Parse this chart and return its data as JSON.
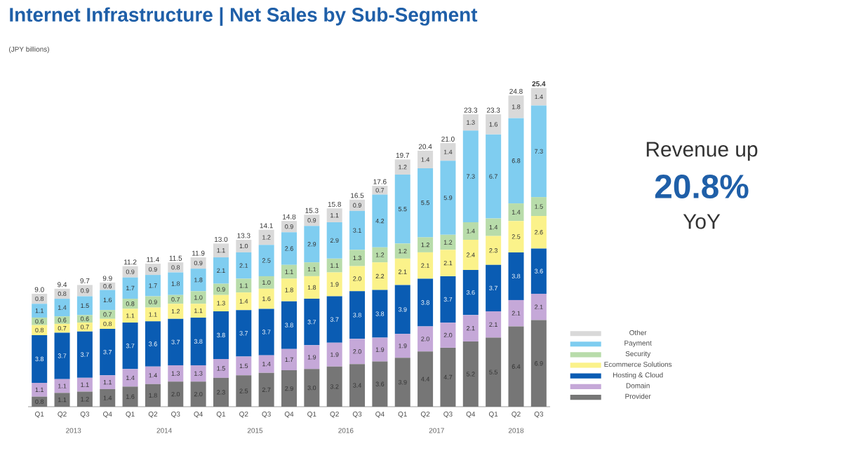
{
  "chart_data": {
    "type": "bar",
    "stacked": true,
    "title": "Internet Infrastructure | Net Sales by Sub-Segment",
    "ylabel": "(JPY billions)",
    "categories": [
      "Q1",
      "Q2",
      "Q3",
      "Q4",
      "Q1",
      "Q2",
      "Q3",
      "Q4",
      "Q1",
      "Q2",
      "Q3",
      "Q4",
      "Q1",
      "Q2",
      "Q3",
      "Q4",
      "Q1",
      "Q2",
      "Q3",
      "Q4",
      "Q1",
      "Q2",
      "Q3"
    ],
    "series": [
      {
        "name": "Provider",
        "color": "#767676",
        "values": [
          0.8,
          1.1,
          1.2,
          1.4,
          1.6,
          1.8,
          2.0,
          2.0,
          2.3,
          2.5,
          2.7,
          2.9,
          3.0,
          3.2,
          3.4,
          3.6,
          3.9,
          4.4,
          4.7,
          5.2,
          5.5,
          6.4,
          6.9
        ],
        "value_labels": [
          "0.8",
          "1.1",
          "1.2",
          "1.4",
          "1.6",
          "1.8",
          "2.0",
          "2.0",
          "2.3",
          "2.5",
          "2.7",
          "2.9",
          "3.0",
          "3.2",
          "3.4",
          "3.6",
          "3.9",
          "4.4",
          "4.7",
          "5.2",
          "5.5",
          "6.4",
          "6.9"
        ]
      },
      {
        "name": "Domain",
        "color": "#c5a8d8",
        "values": [
          1.1,
          1.1,
          1.1,
          1.1,
          1.4,
          1.4,
          1.3,
          1.3,
          1.5,
          1.5,
          1.4,
          1.7,
          1.9,
          1.9,
          2.0,
          1.9,
          1.9,
          2.0,
          2.0,
          2.1,
          2.1,
          2.1,
          2.1
        ],
        "value_labels": [
          "1.1",
          "1.1",
          "1.1",
          "1.1",
          "1.4",
          "1.4",
          "1.3",
          "1.3",
          "1.5",
          "1.5",
          "1.4",
          "1.7",
          "1.9",
          "1.9",
          "2.0",
          "1.9",
          "1.9",
          "2.0",
          "2.0",
          "2.1",
          "2.1",
          "2.1",
          "2.1"
        ]
      },
      {
        "name": "Hosting & Cloud",
        "color": "#0a5cb3",
        "values": [
          3.8,
          3.7,
          3.7,
          3.7,
          3.7,
          3.6,
          3.7,
          3.8,
          3.8,
          3.7,
          3.7,
          3.8,
          3.7,
          3.7,
          3.8,
          3.8,
          3.9,
          3.8,
          3.7,
          3.6,
          3.7,
          3.8,
          3.6
        ],
        "value_labels": [
          "3.8",
          "3.7",
          "3.7",
          "3.7",
          "3.7",
          "3.6",
          "3.7",
          "3.8",
          "3.8",
          "3.7",
          "3.7",
          "3.8",
          "3.7",
          "3.7",
          "3.8",
          "3.8",
          "3.9",
          "3.8",
          "3.7",
          "3.6",
          "3.7",
          "3.8",
          "3.6"
        ]
      },
      {
        "name": "Ecommerce Solutions",
        "color": "#fbf28a",
        "values": [
          0.8,
          0.7,
          0.7,
          0.8,
          1.1,
          1.1,
          1.2,
          1.1,
          1.3,
          1.4,
          1.6,
          1.8,
          1.8,
          1.9,
          2.0,
          2.2,
          2.1,
          2.1,
          2.1,
          2.4,
          2.3,
          2.5,
          2.6
        ],
        "value_labels": [
          "0.8",
          "0.7",
          "0.7",
          "0.8",
          "1.1",
          "1.1",
          "1.2",
          "1.1",
          "1.3",
          "1.4",
          "1.6",
          "1.8",
          "1.8",
          "1.9",
          "2.0",
          "2.2",
          "2.1",
          "2.1",
          "2.1",
          "2.4",
          "2.3",
          "2.5",
          "2.6"
        ]
      },
      {
        "name": "Security",
        "color": "#b8dcaa",
        "values": [
          0.6,
          0.6,
          0.6,
          0.7,
          0.8,
          0.9,
          0.7,
          1.0,
          0.9,
          1.1,
          1.0,
          1.1,
          1.1,
          1.1,
          1.3,
          1.2,
          1.2,
          1.2,
          1.2,
          1.4,
          1.4,
          1.4,
          1.5
        ],
        "value_labels": [
          "0.6",
          "0.6",
          "0.6",
          "0.7",
          "0.8",
          "0.9",
          "0.7",
          "1.0",
          "0.9",
          "1.1",
          "1.0",
          "1.1",
          "1.1",
          "1.1",
          "1.3",
          "1.2",
          "1.2",
          "1.2",
          "1.2",
          "1.4",
          "1.4",
          "1.4",
          "1.5"
        ]
      },
      {
        "name": "Payment",
        "color": "#7fcdf0",
        "values": [
          1.1,
          1.4,
          1.5,
          1.6,
          1.7,
          1.7,
          1.8,
          1.8,
          2.1,
          2.1,
          2.5,
          2.6,
          2.9,
          2.9,
          3.1,
          4.2,
          5.5,
          5.5,
          5.9,
          7.3,
          6.7,
          6.8,
          7.3
        ],
        "value_labels": [
          "1.1",
          "1.4",
          "1.5",
          "1.6",
          "1.7",
          "1.7",
          "1.8",
          "1.8",
          "2.1",
          "2.1",
          "2.5",
          "2.6",
          "2.9",
          "2.9",
          "3.1",
          "4.2",
          "5.5",
          "5.5",
          "5.9",
          "7.3",
          "6.7",
          "6.8",
          "7.3"
        ]
      },
      {
        "name": "Other",
        "color": "#d9d9d9",
        "values": [
          0.8,
          0.8,
          0.9,
          0.6,
          0.9,
          0.9,
          0.8,
          0.9,
          1.1,
          1.0,
          1.2,
          0.9,
          0.9,
          1.1,
          0.9,
          0.7,
          1.2,
          1.4,
          1.4,
          1.3,
          1.6,
          1.8,
          1.4
        ],
        "value_labels": [
          "0.8",
          "0.8",
          "0.9",
          "0.6",
          "0.9",
          "0.9",
          "0.8",
          "0.9",
          "1.1",
          "1.0",
          "1.2",
          "0.9",
          "0.9",
          "1.1",
          "0.9",
          "0.7",
          "1.2",
          "1.4",
          "1.4",
          "1.3",
          "1.6",
          "1.8",
          "1.4"
        ]
      }
    ],
    "totals": [
      "9.0",
      "9.4",
      "9.7",
      "9.9",
      "11.2",
      "11.4",
      "11.5",
      "11.9",
      "13.0",
      "13.3",
      "14.1",
      "14.8",
      "15.3",
      "15.8",
      "16.5",
      "17.6",
      "19.7",
      "20.4",
      "21.0",
      "23.3",
      "23.3",
      "24.8",
      "25.4"
    ],
    "legend": "bottom right",
    "annotations": [
      "2013",
      "2014",
      "2015",
      "2016",
      "2017",
      "2018",
      "Revenue up",
      "20.8%",
      "YoY"
    ]
  }
}
